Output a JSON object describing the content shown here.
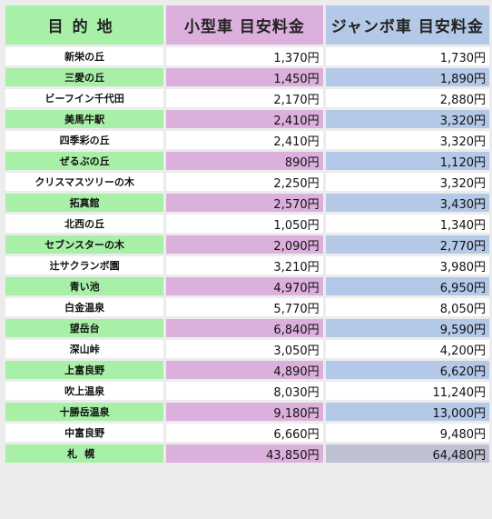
{
  "header": {
    "destination": "目的地",
    "small_car": "小型車 目安料金",
    "jumbo_car": "ジャンボ車 目安料金"
  },
  "rows": [
    {
      "destination": "新栄の丘",
      "small": "1,370円",
      "jumbo": "1,730円"
    },
    {
      "destination": "三愛の丘",
      "small": "1,450円",
      "jumbo": "1,890円"
    },
    {
      "destination": "ビーフイン千代田",
      "small": "2,170円",
      "jumbo": "2,880円"
    },
    {
      "destination": "美馬牛駅",
      "small": "2,410円",
      "jumbo": "3,320円"
    },
    {
      "destination": "四季彩の丘",
      "small": "2,410円",
      "jumbo": "3,320円"
    },
    {
      "destination": "ぜるぶの丘",
      "small": "890円",
      "jumbo": "1,120円"
    },
    {
      "destination": "クリスマスツリーの木",
      "small": "2,250円",
      "jumbo": "3,320円"
    },
    {
      "destination": "拓真館",
      "small": "2,570円",
      "jumbo": "3,430円"
    },
    {
      "destination": "北西の丘",
      "small": "1,050円",
      "jumbo": "1,340円"
    },
    {
      "destination": "セブンスターの木",
      "small": "2,090円",
      "jumbo": "2,770円"
    },
    {
      "destination": "辻サクランボ園",
      "small": "3,210円",
      "jumbo": "3,980円"
    },
    {
      "destination": "青い池",
      "small": "4,970円",
      "jumbo": "6,950円"
    },
    {
      "destination": "白金温泉",
      "small": "5,770円",
      "jumbo": "8,050円"
    },
    {
      "destination": "望岳台",
      "small": "6,840円",
      "jumbo": "9,590円"
    },
    {
      "destination": "深山峠",
      "small": "3,050円",
      "jumbo": "4,200円"
    },
    {
      "destination": "上富良野",
      "small": "4,890円",
      "jumbo": "6,620円"
    },
    {
      "destination": "吹上温泉",
      "small": "8,030円",
      "jumbo": "11,240円"
    },
    {
      "destination": "十勝岳温泉",
      "small": "9,180円",
      "jumbo": "13,000円"
    },
    {
      "destination": "中富良野",
      "small": "6,660円",
      "jumbo": "9,480円"
    },
    {
      "destination": "札幌",
      "small": "43,850円",
      "jumbo": "64,480円"
    }
  ],
  "colors": {
    "destination_accent": "#a8f0a8",
    "small_accent": "#dcb0dc",
    "jumbo_accent": "#b4c8e8"
  }
}
